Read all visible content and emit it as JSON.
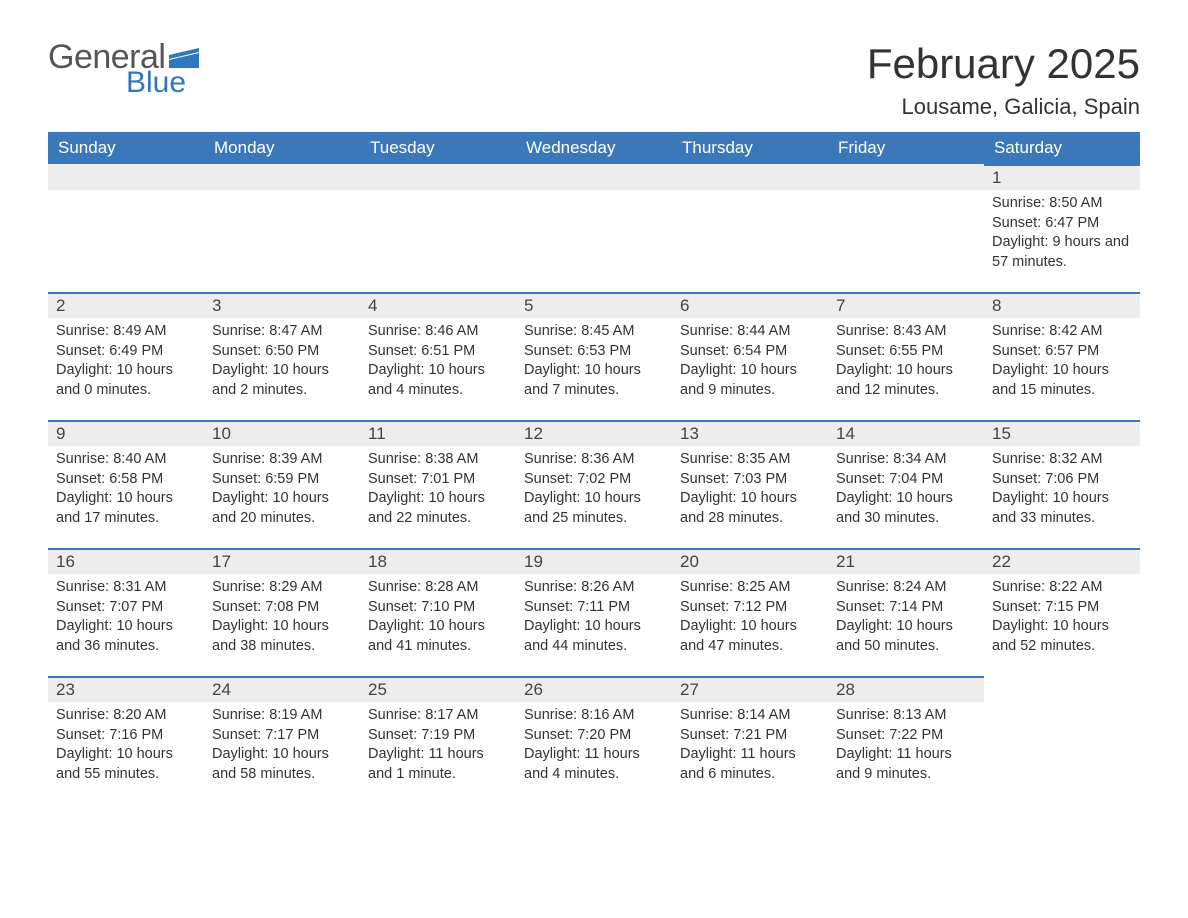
{
  "brand": {
    "word1": "General",
    "word2": "Blue",
    "word1_color": "#555555",
    "word2_color": "#2f78bf",
    "flag_color": "#2f78bf"
  },
  "title": "February 2025",
  "location": "Lousame, Galicia, Spain",
  "colors": {
    "header_bg": "#3b78b9",
    "header_text": "#ffffff",
    "daynum_bg": "#ededed",
    "row_border": "#3b78b9",
    "body_bg": "#ffffff",
    "text": "#333333"
  },
  "fonts": {
    "title_size_pt": 32,
    "location_size_pt": 17,
    "dayhead_size_pt": 13,
    "body_size_pt": 11
  },
  "weekdays": [
    "Sunday",
    "Monday",
    "Tuesday",
    "Wednesday",
    "Thursday",
    "Friday",
    "Saturday"
  ],
  "labels": {
    "sunrise": "Sunrise:",
    "sunset": "Sunset:",
    "daylight": "Daylight:"
  },
  "weeks": [
    [
      null,
      null,
      null,
      null,
      null,
      null,
      {
        "n": "1",
        "sr": "8:50 AM",
        "ss": "6:47 PM",
        "dl": "9 hours and 57 minutes."
      }
    ],
    [
      {
        "n": "2",
        "sr": "8:49 AM",
        "ss": "6:49 PM",
        "dl": "10 hours and 0 minutes."
      },
      {
        "n": "3",
        "sr": "8:47 AM",
        "ss": "6:50 PM",
        "dl": "10 hours and 2 minutes."
      },
      {
        "n": "4",
        "sr": "8:46 AM",
        "ss": "6:51 PM",
        "dl": "10 hours and 4 minutes."
      },
      {
        "n": "5",
        "sr": "8:45 AM",
        "ss": "6:53 PM",
        "dl": "10 hours and 7 minutes."
      },
      {
        "n": "6",
        "sr": "8:44 AM",
        "ss": "6:54 PM",
        "dl": "10 hours and 9 minutes."
      },
      {
        "n": "7",
        "sr": "8:43 AM",
        "ss": "6:55 PM",
        "dl": "10 hours and 12 minutes."
      },
      {
        "n": "8",
        "sr": "8:42 AM",
        "ss": "6:57 PM",
        "dl": "10 hours and 15 minutes."
      }
    ],
    [
      {
        "n": "9",
        "sr": "8:40 AM",
        "ss": "6:58 PM",
        "dl": "10 hours and 17 minutes."
      },
      {
        "n": "10",
        "sr": "8:39 AM",
        "ss": "6:59 PM",
        "dl": "10 hours and 20 minutes."
      },
      {
        "n": "11",
        "sr": "8:38 AM",
        "ss": "7:01 PM",
        "dl": "10 hours and 22 minutes."
      },
      {
        "n": "12",
        "sr": "8:36 AM",
        "ss": "7:02 PM",
        "dl": "10 hours and 25 minutes."
      },
      {
        "n": "13",
        "sr": "8:35 AM",
        "ss": "7:03 PM",
        "dl": "10 hours and 28 minutes."
      },
      {
        "n": "14",
        "sr": "8:34 AM",
        "ss": "7:04 PM",
        "dl": "10 hours and 30 minutes."
      },
      {
        "n": "15",
        "sr": "8:32 AM",
        "ss": "7:06 PM",
        "dl": "10 hours and 33 minutes."
      }
    ],
    [
      {
        "n": "16",
        "sr": "8:31 AM",
        "ss": "7:07 PM",
        "dl": "10 hours and 36 minutes."
      },
      {
        "n": "17",
        "sr": "8:29 AM",
        "ss": "7:08 PM",
        "dl": "10 hours and 38 minutes."
      },
      {
        "n": "18",
        "sr": "8:28 AM",
        "ss": "7:10 PM",
        "dl": "10 hours and 41 minutes."
      },
      {
        "n": "19",
        "sr": "8:26 AM",
        "ss": "7:11 PM",
        "dl": "10 hours and 44 minutes."
      },
      {
        "n": "20",
        "sr": "8:25 AM",
        "ss": "7:12 PM",
        "dl": "10 hours and 47 minutes."
      },
      {
        "n": "21",
        "sr": "8:24 AM",
        "ss": "7:14 PM",
        "dl": "10 hours and 50 minutes."
      },
      {
        "n": "22",
        "sr": "8:22 AM",
        "ss": "7:15 PM",
        "dl": "10 hours and 52 minutes."
      }
    ],
    [
      {
        "n": "23",
        "sr": "8:20 AM",
        "ss": "7:16 PM",
        "dl": "10 hours and 55 minutes."
      },
      {
        "n": "24",
        "sr": "8:19 AM",
        "ss": "7:17 PM",
        "dl": "10 hours and 58 minutes."
      },
      {
        "n": "25",
        "sr": "8:17 AM",
        "ss": "7:19 PM",
        "dl": "11 hours and 1 minute."
      },
      {
        "n": "26",
        "sr": "8:16 AM",
        "ss": "7:20 PM",
        "dl": "11 hours and 4 minutes."
      },
      {
        "n": "27",
        "sr": "8:14 AM",
        "ss": "7:21 PM",
        "dl": "11 hours and 6 minutes."
      },
      {
        "n": "28",
        "sr": "8:13 AM",
        "ss": "7:22 PM",
        "dl": "11 hours and 9 minutes."
      },
      null
    ]
  ]
}
